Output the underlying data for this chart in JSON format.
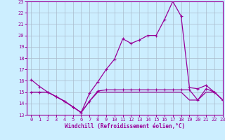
{
  "hours": [
    0,
    1,
    2,
    3,
    4,
    5,
    6,
    7,
    8,
    9,
    10,
    11,
    12,
    13,
    14,
    15,
    16,
    17,
    18,
    19,
    20,
    21,
    22,
    23
  ],
  "temp": [
    16.1,
    15.5,
    15.0,
    14.6,
    14.2,
    13.7,
    13.2,
    14.9,
    15.9,
    17.0,
    17.9,
    19.7,
    19.3,
    19.6,
    20.0,
    20.0,
    21.4,
    23.0,
    21.7,
    15.4,
    15.3,
    15.6,
    15.0,
    14.3
  ],
  "wc1": [
    15.0,
    15.0,
    15.0,
    14.6,
    14.2,
    13.7,
    13.2,
    14.2,
    15.1,
    15.2,
    15.2,
    15.2,
    15.2,
    15.2,
    15.2,
    15.2,
    15.2,
    15.2,
    15.2,
    15.2,
    14.3,
    15.3,
    15.0,
    14.3
  ],
  "wc2": [
    15.0,
    15.0,
    15.0,
    14.6,
    14.2,
    13.7,
    13.2,
    14.2,
    15.0,
    15.0,
    15.0,
    15.0,
    15.0,
    15.0,
    15.0,
    15.0,
    15.0,
    15.0,
    15.0,
    14.3,
    14.3,
    15.0,
    15.0,
    14.3
  ],
  "line_color": "#990099",
  "bg_color": "#cceeff",
  "grid_color": "#aabbcc",
  "xlabel": "Windchill (Refroidissement éolien,°C)",
  "ylim": [
    13,
    23
  ],
  "xlim": [
    -0.5,
    23
  ],
  "yticks": [
    13,
    14,
    15,
    16,
    17,
    18,
    19,
    20,
    21,
    22,
    23
  ],
  "xticks": [
    0,
    1,
    2,
    3,
    4,
    5,
    6,
    7,
    8,
    9,
    10,
    11,
    12,
    13,
    14,
    15,
    16,
    17,
    18,
    19,
    20,
    21,
    22,
    23
  ]
}
